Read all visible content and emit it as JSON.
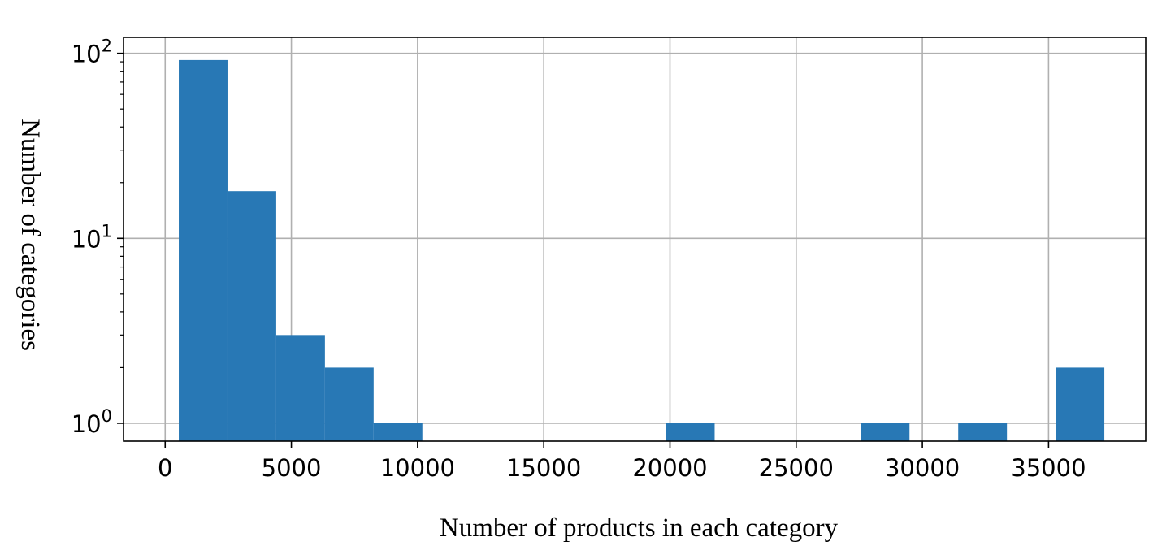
{
  "chart_data": {
    "type": "bar",
    "subtype": "histogram",
    "xlabel": "Number of products in each category",
    "ylabel": "Number of categories",
    "xscale": "linear",
    "yscale": "log",
    "xlim": [
      -1650,
      38850
    ],
    "ylim": [
      0.8,
      122
    ],
    "grid": true,
    "bar_color": "#2878b5",
    "x_ticks": [
      0,
      5000,
      10000,
      15000,
      20000,
      25000,
      30000,
      35000
    ],
    "x_tick_labels": [
      "0",
      "5000",
      "10000",
      "15000",
      "20000",
      "25000",
      "30000",
      "35000"
    ],
    "y_ticks": [
      {
        "value": 1,
        "base": "10",
        "exp": "0"
      },
      {
        "value": 10,
        "base": "10",
        "exp": "1"
      },
      {
        "value": 100,
        "base": "10",
        "exp": "2"
      }
    ],
    "bins": [
      {
        "x0": 540,
        "x1": 2470,
        "count": 92
      },
      {
        "x0": 2470,
        "x1": 4400,
        "count": 18
      },
      {
        "x0": 4400,
        "x1": 6330,
        "count": 3
      },
      {
        "x0": 6330,
        "x1": 8260,
        "count": 2
      },
      {
        "x0": 8260,
        "x1": 10190,
        "count": 1
      },
      {
        "x0": 19840,
        "x1": 21770,
        "count": 1
      },
      {
        "x0": 27560,
        "x1": 29490,
        "count": 1
      },
      {
        "x0": 31420,
        "x1": 33350,
        "count": 1
      },
      {
        "x0": 35280,
        "x1": 37210,
        "count": 2
      }
    ]
  }
}
